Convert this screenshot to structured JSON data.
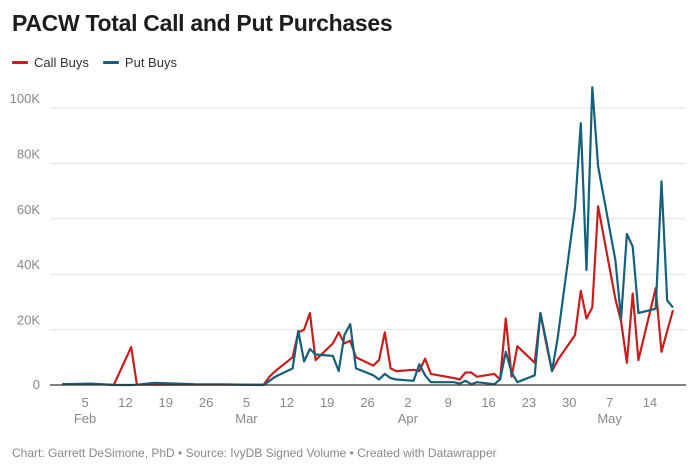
{
  "title": "PACW Total Call and Put Purchases",
  "footer": "Chart: Garrett DeSimone, PhD • Source: IvyDB Signed Volume • Created with Datawrapper",
  "chart_data": {
    "type": "line",
    "title": "PACW Total Call and Put Purchases",
    "xlabel": "",
    "ylabel": "",
    "ylim": [
      0,
      110000
    ],
    "xlim": [
      "2023-02-01",
      "2023-05-18"
    ],
    "grid": "horizontal",
    "legend_position": "top-left",
    "y_ticks": [
      {
        "value": 0,
        "label": "0"
      },
      {
        "value": 20000,
        "label": "20K"
      },
      {
        "value": 40000,
        "label": "40K"
      },
      {
        "value": 60000,
        "label": "60K"
      },
      {
        "value": 80000,
        "label": "80K"
      },
      {
        "value": 100000,
        "label": "100K"
      }
    ],
    "x_ticks": [
      {
        "date": "2023-02-05",
        "label": "5",
        "month": "Feb"
      },
      {
        "date": "2023-02-12",
        "label": "12",
        "month": ""
      },
      {
        "date": "2023-02-19",
        "label": "19",
        "month": ""
      },
      {
        "date": "2023-02-26",
        "label": "26",
        "month": ""
      },
      {
        "date": "2023-03-05",
        "label": "5",
        "month": "Mar"
      },
      {
        "date": "2023-03-12",
        "label": "12",
        "month": ""
      },
      {
        "date": "2023-03-19",
        "label": "19",
        "month": ""
      },
      {
        "date": "2023-03-26",
        "label": "26",
        "month": ""
      },
      {
        "date": "2023-04-02",
        "label": "2",
        "month": "Apr"
      },
      {
        "date": "2023-04-09",
        "label": "9",
        "month": ""
      },
      {
        "date": "2023-04-16",
        "label": "16",
        "month": ""
      },
      {
        "date": "2023-04-23",
        "label": "23",
        "month": ""
      },
      {
        "date": "2023-04-30",
        "label": "30",
        "month": ""
      },
      {
        "date": "2023-05-07",
        "label": "7",
        "month": "May"
      },
      {
        "date": "2023-05-14",
        "label": "14",
        "month": ""
      }
    ],
    "series": [
      {
        "name": "Call Buys",
        "color": "#c71e1d",
        "points": [
          [
            "2023-02-01",
            200
          ],
          [
            "2023-02-06",
            300
          ],
          [
            "2023-02-10",
            100
          ],
          [
            "2023-02-13",
            13700
          ],
          [
            "2023-02-14",
            100
          ],
          [
            "2023-02-21",
            100
          ],
          [
            "2023-03-01",
            100
          ],
          [
            "2023-03-08",
            100
          ],
          [
            "2023-03-09",
            3000
          ],
          [
            "2023-03-10",
            5000
          ],
          [
            "2023-03-13",
            10000
          ],
          [
            "2023-03-14",
            19000
          ],
          [
            "2023-03-15",
            20000
          ],
          [
            "2023-03-16",
            26000
          ],
          [
            "2023-03-17",
            9000
          ],
          [
            "2023-03-20",
            15000
          ],
          [
            "2023-03-21",
            19000
          ],
          [
            "2023-03-22",
            15000
          ],
          [
            "2023-03-23",
            16000
          ],
          [
            "2023-03-24",
            10000
          ],
          [
            "2023-03-27",
            7000
          ],
          [
            "2023-03-28",
            9000
          ],
          [
            "2023-03-29",
            19000
          ],
          [
            "2023-03-30",
            6000
          ],
          [
            "2023-03-31",
            5000
          ],
          [
            "2023-04-03",
            5500
          ],
          [
            "2023-04-04",
            5000
          ],
          [
            "2023-04-05",
            9500
          ],
          [
            "2023-04-06",
            4000
          ],
          [
            "2023-04-10",
            2500
          ],
          [
            "2023-04-11",
            2000
          ],
          [
            "2023-04-12",
            4500
          ],
          [
            "2023-04-13",
            4500
          ],
          [
            "2023-04-14",
            3000
          ],
          [
            "2023-04-17",
            4000
          ],
          [
            "2023-04-18",
            2000
          ],
          [
            "2023-04-19",
            24000
          ],
          [
            "2023-04-20",
            3000
          ],
          [
            "2023-04-21",
            14000
          ],
          [
            "2023-04-24",
            8000
          ],
          [
            "2023-04-25",
            26000
          ],
          [
            "2023-04-26",
            15000
          ],
          [
            "2023-04-27",
            5000
          ],
          [
            "2023-04-28",
            9000
          ],
          [
            "2023-05-01",
            18000
          ],
          [
            "2023-05-02",
            34000
          ],
          [
            "2023-05-03",
            24000
          ],
          [
            "2023-05-04",
            28000
          ],
          [
            "2023-05-05",
            64500
          ],
          [
            "2023-05-08",
            31000
          ],
          [
            "2023-05-09",
            23000
          ],
          [
            "2023-05-10",
            8000
          ],
          [
            "2023-05-11",
            33000
          ],
          [
            "2023-05-12",
            9000
          ],
          [
            "2023-05-15",
            35000
          ],
          [
            "2023-05-16",
            12000
          ],
          [
            "2023-05-17",
            19500
          ],
          [
            "2023-05-18",
            27000
          ]
        ]
      },
      {
        "name": "Put Buys",
        "color": "#15607a",
        "points": [
          [
            "2023-02-01",
            300
          ],
          [
            "2023-02-06",
            500
          ],
          [
            "2023-02-10",
            0
          ],
          [
            "2023-02-13",
            0
          ],
          [
            "2023-02-14",
            100
          ],
          [
            "2023-02-17",
            800
          ],
          [
            "2023-02-24",
            300
          ],
          [
            "2023-03-01",
            200
          ],
          [
            "2023-03-08",
            0
          ],
          [
            "2023-03-09",
            1500
          ],
          [
            "2023-03-10",
            3000
          ],
          [
            "2023-03-13",
            6000
          ],
          [
            "2023-03-14",
            19500
          ],
          [
            "2023-03-15",
            8500
          ],
          [
            "2023-03-16",
            13000
          ],
          [
            "2023-03-17",
            11000
          ],
          [
            "2023-03-20",
            10500
          ],
          [
            "2023-03-21",
            5000
          ],
          [
            "2023-03-22",
            18000
          ],
          [
            "2023-03-23",
            22000
          ],
          [
            "2023-03-24",
            6000
          ],
          [
            "2023-03-27",
            3500
          ],
          [
            "2023-03-28",
            2000
          ],
          [
            "2023-03-29",
            4000
          ],
          [
            "2023-03-30",
            2500
          ],
          [
            "2023-03-31",
            2000
          ],
          [
            "2023-04-03",
            1500
          ],
          [
            "2023-04-04",
            7500
          ],
          [
            "2023-04-05",
            3500
          ],
          [
            "2023-04-06",
            1000
          ],
          [
            "2023-04-10",
            1000
          ],
          [
            "2023-04-11",
            500
          ],
          [
            "2023-04-12",
            1500
          ],
          [
            "2023-04-13",
            300
          ],
          [
            "2023-04-14",
            1000
          ],
          [
            "2023-04-17",
            300
          ],
          [
            "2023-04-18",
            2000
          ],
          [
            "2023-04-19",
            12000
          ],
          [
            "2023-04-20",
            4500
          ],
          [
            "2023-04-21",
            1000
          ],
          [
            "2023-04-24",
            3500
          ],
          [
            "2023-04-25",
            26000
          ],
          [
            "2023-04-26",
            16000
          ],
          [
            "2023-04-27",
            5000
          ],
          [
            "2023-04-28",
            17000
          ],
          [
            "2023-05-01",
            64000
          ],
          [
            "2023-05-02",
            94500
          ],
          [
            "2023-05-03",
            41500
          ],
          [
            "2023-05-04",
            107500
          ],
          [
            "2023-05-05",
            79000
          ],
          [
            "2023-05-08",
            45000
          ],
          [
            "2023-05-09",
            24000
          ],
          [
            "2023-05-10",
            54500
          ],
          [
            "2023-05-11",
            50000
          ],
          [
            "2023-05-12",
            26000
          ],
          [
            "2023-05-15",
            27500
          ],
          [
            "2023-05-16",
            73500
          ],
          [
            "2023-05-17",
            30500
          ],
          [
            "2023-05-18",
            28000
          ]
        ]
      }
    ]
  }
}
